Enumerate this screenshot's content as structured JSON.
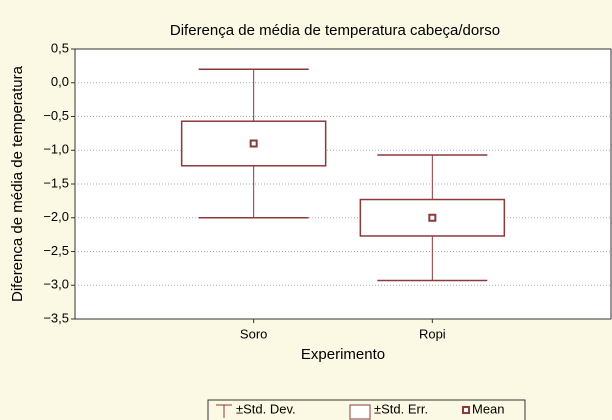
{
  "chart_data": {
    "type": "box",
    "title": "Diferença de média de temperatura cabeça/dorso",
    "x_label": "Experimento",
    "y_label": "Diferenca de média de temperatura",
    "categories": [
      "Soro",
      "Ropi"
    ],
    "means": [
      -0.9,
      -2.0
    ],
    "std_err": [
      0.33,
      0.27
    ],
    "std_dev": [
      1.1,
      0.93
    ],
    "ylim": [
      -3.5,
      0.5
    ],
    "yticks": [
      {
        "value": 0.5,
        "label": "0,5"
      },
      {
        "value": 0,
        "label": "0,0"
      },
      {
        "value": -0.5,
        "label": "−0,5"
      },
      {
        "value": -1,
        "label": "−1,0"
      },
      {
        "value": -1.5,
        "label": "−1,5"
      },
      {
        "value": -2,
        "label": "−2,0"
      },
      {
        "value": -2.5,
        "label": "−2,5"
      },
      {
        "value": -3,
        "label": "−3,0"
      },
      {
        "value": -3.5,
        "label": "−3,5"
      }
    ],
    "grid": true,
    "color": "#8b3a3a",
    "legend": {
      "position": "bottom",
      "entries": [
        "±Std. Dev.",
        "±Std. Err.",
        "Mean"
      ]
    }
  }
}
